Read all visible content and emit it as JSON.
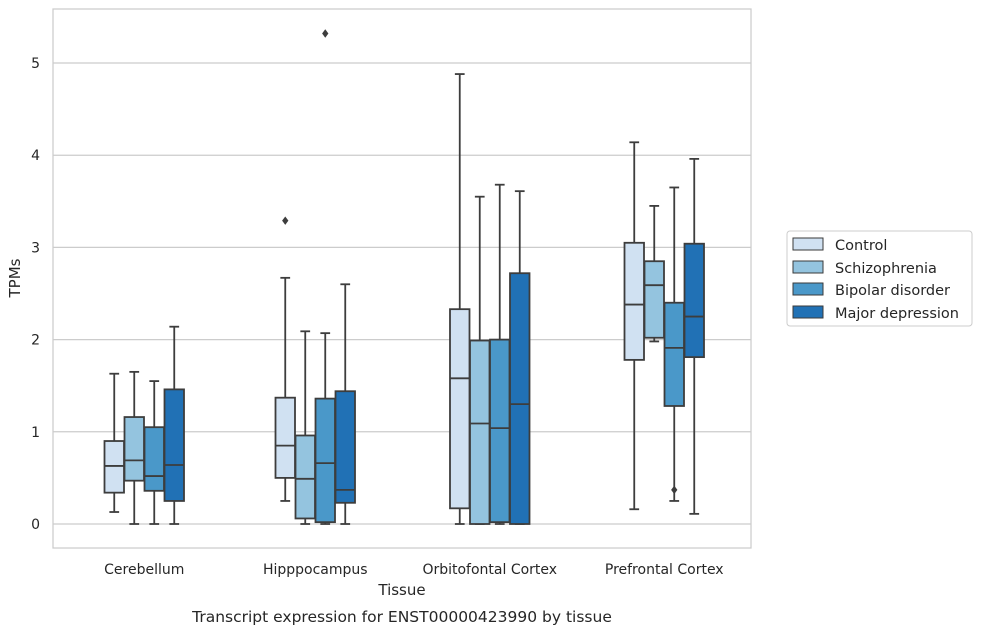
{
  "chart_data": {
    "type": "box",
    "caption": "Transcript expression for ENST00000423990 by tissue",
    "xlabel": "Tissue",
    "ylabel": "TPMs",
    "ylim": [
      -0.25,
      5.6
    ],
    "yticks": [
      "0",
      "1",
      "2",
      "3",
      "4",
      "5"
    ],
    "grid": "horizontal",
    "legend_position": "right",
    "categories": [
      "Cerebellum",
      "Hipppocampus",
      "Orbitofontal Cortex",
      "Prefrontal Cortex"
    ],
    "series": [
      {
        "name": "Control",
        "color": "#d0e1f2",
        "boxes": [
          {
            "whisker_low": 0.13,
            "q1": 0.34,
            "median": 0.63,
            "q3": 0.9,
            "whisker_high": 1.63,
            "outliers": []
          },
          {
            "whisker_low": 0.25,
            "q1": 0.5,
            "median": 0.85,
            "q3": 1.37,
            "whisker_high": 2.67,
            "outliers": [
              3.29
            ]
          },
          {
            "whisker_low": 0.0,
            "q1": 0.17,
            "median": 1.58,
            "q3": 2.33,
            "whisker_high": 4.88,
            "outliers": []
          },
          {
            "whisker_low": 0.16,
            "q1": 1.78,
            "median": 2.38,
            "q3": 3.05,
            "whisker_high": 4.14,
            "outliers": []
          }
        ]
      },
      {
        "name": "Schizophrenia",
        "color": "#94c4df",
        "boxes": [
          {
            "whisker_low": 0.0,
            "q1": 0.47,
            "median": 0.69,
            "q3": 1.16,
            "whisker_high": 1.65,
            "outliers": []
          },
          {
            "whisker_low": 0.0,
            "q1": 0.06,
            "median": 0.49,
            "q3": 0.96,
            "whisker_high": 2.09,
            "outliers": []
          },
          {
            "whisker_low": 0.0,
            "q1": 0.0,
            "median": 1.09,
            "q3": 1.99,
            "whisker_high": 3.55,
            "outliers": []
          },
          {
            "whisker_low": 1.98,
            "q1": 2.02,
            "median": 2.59,
            "q3": 2.85,
            "whisker_high": 3.45,
            "outliers": []
          }
        ]
      },
      {
        "name": "Bipolar disorder",
        "color": "#4a98c9",
        "boxes": [
          {
            "whisker_low": 0.0,
            "q1": 0.36,
            "median": 0.52,
            "q3": 1.05,
            "whisker_high": 1.55,
            "outliers": []
          },
          {
            "whisker_low": 0.0,
            "q1": 0.02,
            "median": 0.66,
            "q3": 1.36,
            "whisker_high": 2.07,
            "outliers": [
              5.32
            ]
          },
          {
            "whisker_low": 0.0,
            "q1": 0.02,
            "median": 1.04,
            "q3": 2.0,
            "whisker_high": 3.68,
            "outliers": []
          },
          {
            "whisker_low": 0.25,
            "q1": 1.28,
            "median": 1.91,
            "q3": 2.4,
            "whisker_high": 3.65,
            "outliers": [
              0.37
            ]
          }
        ]
      },
      {
        "name": "Major depression",
        "color": "#2171b5",
        "boxes": [
          {
            "whisker_low": 0.0,
            "q1": 0.25,
            "median": 0.64,
            "q3": 1.46,
            "whisker_high": 2.14,
            "outliers": []
          },
          {
            "whisker_low": 0.0,
            "q1": 0.23,
            "median": 0.37,
            "q3": 1.44,
            "whisker_high": 2.6,
            "outliers": []
          },
          {
            "whisker_low": 0.0,
            "q1": 0.0,
            "median": 1.3,
            "q3": 2.72,
            "whisker_high": 3.61,
            "outliers": []
          },
          {
            "whisker_low": 0.11,
            "q1": 1.81,
            "median": 2.25,
            "q3": 3.04,
            "whisker_high": 3.96,
            "outliers": []
          }
        ]
      }
    ]
  }
}
